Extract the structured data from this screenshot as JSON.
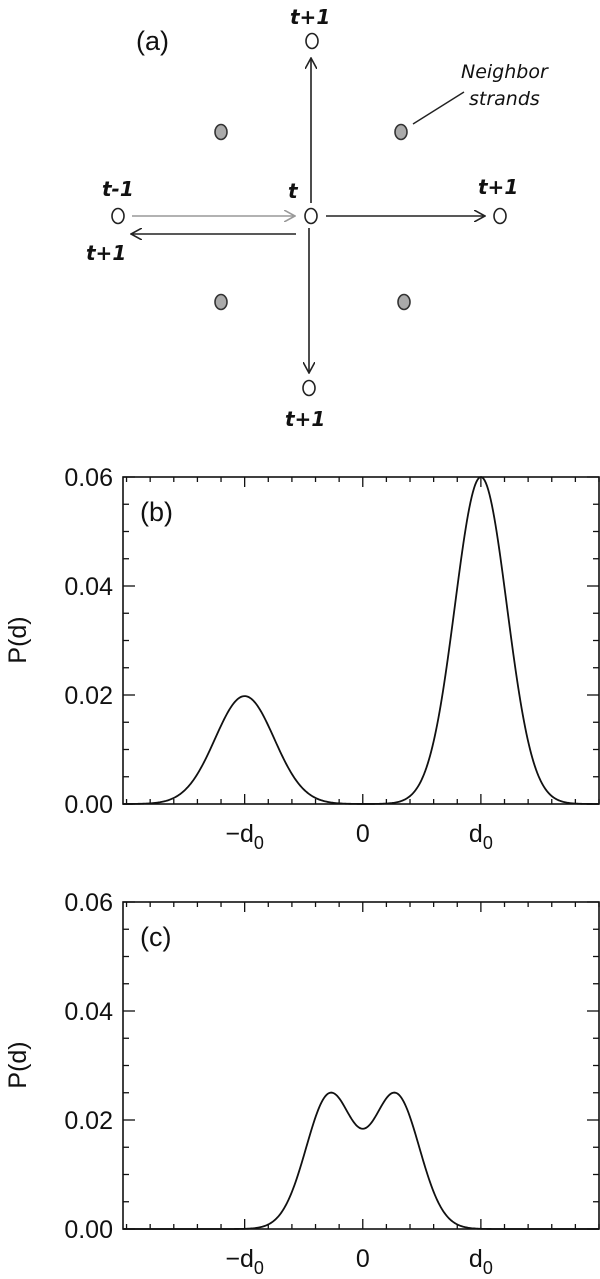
{
  "diagram": {
    "panel_label": "(a)",
    "center_label": "t",
    "top_label": "t+1",
    "right_label": "t+1",
    "bottom_label": "t+1",
    "left_prev_label": "t-1",
    "left_next_label": "t+1",
    "annotation": [
      "Neighbor",
      "strands"
    ],
    "colors": {
      "open_node": "#ffffff",
      "neighbor_node": "#aaaaaa",
      "arrow": "#222222",
      "prev_arrow": "#999999"
    }
  },
  "chart_data": [
    {
      "type": "line",
      "panel_label": "(b)",
      "title": "",
      "xlabel": "",
      "ylabel": "P(d)",
      "x_ticks": [
        -1,
        0,
        1
      ],
      "x_tick_labels": [
        "−d₀",
        "0",
        "d₀"
      ],
      "y_ticks": [
        0.0,
        0.02,
        0.04,
        0.06
      ],
      "y_tick_labels": [
        "0.00",
        "0.02",
        "0.04",
        "0.06"
      ],
      "xlim": [
        -2.03,
        2.0
      ],
      "ylim": [
        0.0,
        0.06
      ],
      "grid": false,
      "legend": null,
      "series": [
        {
          "name": "P(d)",
          "description": "Bimodal Gaussian mixture: peak ~0.020 at x=-d0, peak ~0.060 at x=+d0, sigma ~0.25 d0",
          "components": [
            {
              "center": -1.0,
              "peak": 0.0198,
              "sigma": 0.25
            },
            {
              "center": 1.0,
              "peak": 0.06,
              "sigma": 0.22
            }
          ],
          "x": [
            -2.0,
            -1.75,
            -1.5,
            -1.25,
            -1.0,
            -0.75,
            -0.5,
            -0.25,
            0.0,
            0.25,
            0.5,
            0.75,
            1.0,
            1.25,
            1.5,
            1.75,
            2.0
          ],
          "y": [
            0.0,
            0.0,
            0.0027,
            0.012,
            0.0198,
            0.012,
            0.0027,
            0.0,
            0.0,
            0.0,
            0.0045,
            0.0316,
            0.06,
            0.0316,
            0.0045,
            0.0,
            0.0
          ]
        }
      ]
    },
    {
      "type": "line",
      "panel_label": "(c)",
      "title": "",
      "xlabel": "",
      "ylabel": "P(d)",
      "x_ticks": [
        -1,
        0,
        1
      ],
      "x_tick_labels": [
        "−d₀",
        "0",
        "d₀"
      ],
      "y_ticks": [
        0.0,
        0.02,
        0.04,
        0.06
      ],
      "y_tick_labels": [
        "0.00",
        "0.02",
        "0.04",
        "0.06"
      ],
      "xlim": [
        -2.03,
        2.0
      ],
      "ylim": [
        0.0,
        0.06
      ],
      "grid": false,
      "legend": null,
      "series": [
        {
          "name": "P(d)",
          "description": "Symmetric double-hump centered at 0: peaks ~0.027 at x=+/-0.22 d0, dip ~0.0235 at 0, support ~[-0.9,0.9] d0",
          "components": [
            {
              "center": -0.28,
              "peak": 0.0245,
              "sigma": 0.2
            },
            {
              "center": 0.28,
              "peak": 0.0245,
              "sigma": 0.2
            }
          ],
          "x": [
            -1.0,
            -0.8,
            -0.6,
            -0.4,
            -0.22,
            0.0,
            0.22,
            0.4,
            0.6,
            0.8,
            1.0
          ],
          "y": [
            0.0,
            0.0015,
            0.0095,
            0.0225,
            0.027,
            0.0235,
            0.027,
            0.0225,
            0.0095,
            0.0015,
            0.0
          ]
        }
      ]
    }
  ]
}
